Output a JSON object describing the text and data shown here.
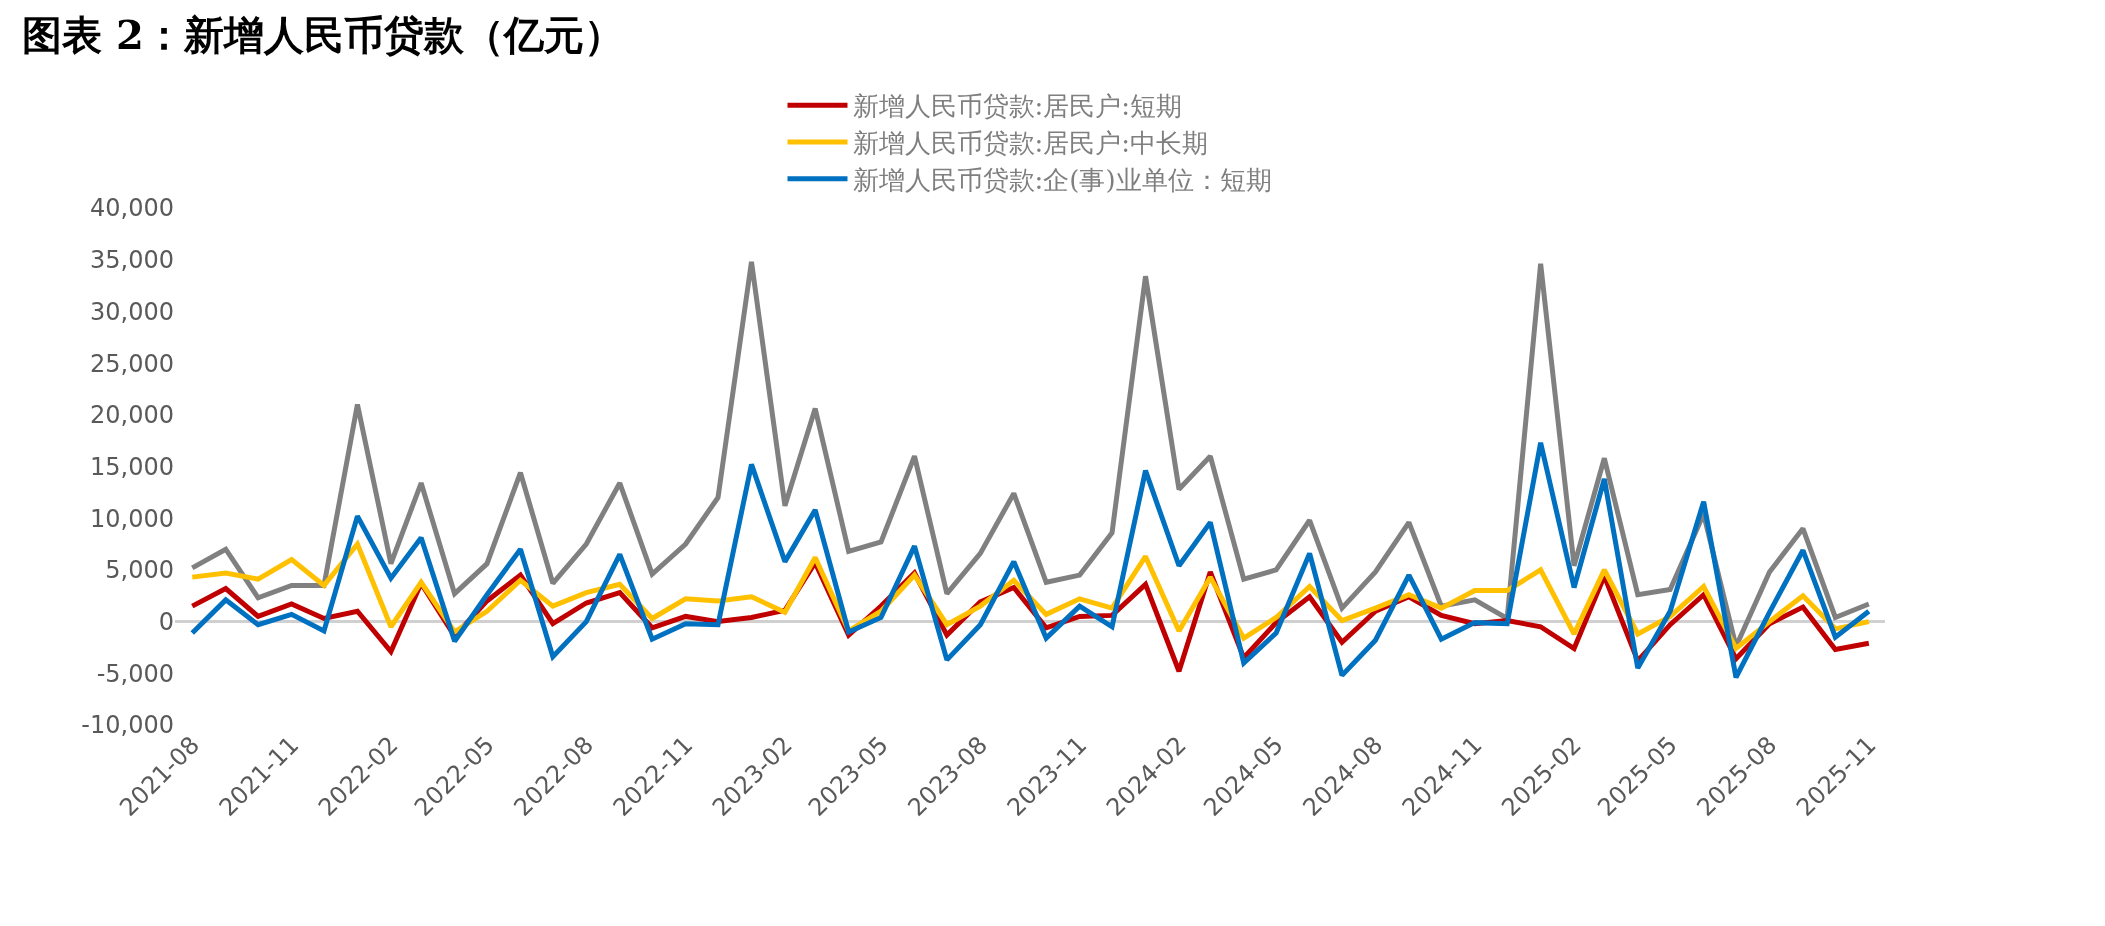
{
  "chart_data": {
    "type": "line",
    "title": "图表 2：新增人民币贷款（亿元）",
    "x": [
      "2021-08",
      "2021-09",
      "2021-10",
      "2021-11",
      "2021-12",
      "2022-01",
      "2022-02",
      "2022-03",
      "2022-04",
      "2022-05",
      "2022-06",
      "2022-07",
      "2022-08",
      "2022-09",
      "2022-10",
      "2022-11",
      "2022-12",
      "2023-01",
      "2023-02",
      "2023-03",
      "2023-04",
      "2023-05",
      "2023-06",
      "2023-07",
      "2023-08",
      "2023-09",
      "2023-10",
      "2023-11",
      "2023-12",
      "2024-01",
      "2024-02",
      "2024-03",
      "2024-04",
      "2024-05",
      "2024-06",
      "2024-07",
      "2024-08",
      "2024-09",
      "2024-10",
      "2024-11",
      "2024-12",
      "2025-01",
      "2025-02",
      "2025-03",
      "2025-04",
      "2025-05",
      "2025-06",
      "2025-07",
      "2025-08",
      "2025-09",
      "2025-10",
      "2025-11"
    ],
    "series": [
      {
        "name": "新增人民币贷款:居民户:短期",
        "color": "#c00000",
        "values": [
          1500,
          3200,
          500,
          1700,
          300,
          1000,
          -2900,
          3700,
          -1400,
          2000,
          4500,
          -200,
          1800,
          2800,
          -600,
          500,
          0,
          400,
          1100,
          5700,
          -1300,
          1500,
          4700,
          -1300,
          1900,
          3300,
          -600,
          500,
          600,
          3600,
          -4800,
          4800,
          -3500,
          -100,
          2400,
          -2000,
          1000,
          2400,
          600,
          -200,
          100,
          -500,
          -2600,
          4400,
          -3800,
          -300,
          2600,
          -3600,
          -200,
          1400,
          -2700,
          -2100
        ]
      },
      {
        "name": "新增人民币贷款:居民户:中长期",
        "color": "#ffc000",
        "values": [
          4300,
          4700,
          4100,
          6000,
          3500,
          7500,
          -500,
          3800,
          -1000,
          1000,
          4000,
          1500,
          2800,
          3600,
          300,
          2200,
          2000,
          2400,
          900,
          6200,
          -900,
          1000,
          4500,
          -300,
          1500,
          4000,
          700,
          2200,
          1300,
          6300,
          -900,
          4300,
          -1600,
          400,
          3400,
          100,
          1300,
          2600,
          1300,
          3000,
          3000,
          5000,
          -1200,
          5000,
          -1200,
          500,
          3400,
          -2600,
          0,
          2500,
          -700,
          0
        ]
      },
      {
        "name": "新增人民币贷款:企(事)业单位：短期",
        "color": "#0070c0",
        "values": [
          -1100,
          2100,
          -300,
          700,
          -900,
          10200,
          4200,
          8100,
          -1900,
          2600,
          7000,
          -3400,
          0,
          6500,
          -1700,
          -200,
          -300,
          15200,
          5800,
          10800,
          -1000,
          400,
          7300,
          -3700,
          -300,
          5800,
          -1600,
          1500,
          -500,
          14600,
          5400,
          9600,
          -4000,
          -1100,
          6600,
          -5200,
          -1800,
          4500,
          -1700,
          -100,
          -200,
          17300,
          3300,
          13800,
          -4500,
          1000,
          11600,
          -5400,
          900,
          6900,
          -1500,
          1000
        ]
      },
      {
        "color": "#808080",
        "values": [
          5200,
          7000,
          2300,
          3500,
          3500,
          21000,
          5600,
          13400,
          2700,
          5600,
          14400,
          3700,
          7500,
          13400,
          4600,
          7500,
          12000,
          34800,
          11200,
          20600,
          6800,
          7700,
          16000,
          2700,
          6600,
          12400,
          3800,
          4500,
          8600,
          33400,
          12800,
          16000,
          4100,
          5000,
          9800,
          1300,
          4800,
          9600,
          1500,
          2100,
          300,
          34600,
          5400,
          15800,
          2600,
          3100,
          10400,
          -2400,
          4800,
          9000,
          400,
          1700
        ]
      }
    ],
    "xlim": [
      "2021-07-16",
      "2025-11-16"
    ],
    "xticks": [
      "2021-08",
      "2021-11",
      "2022-02",
      "2022-05",
      "2022-08",
      "2022-11",
      "2023-02",
      "2023-05",
      "2023-08",
      "2023-11",
      "2024-02",
      "2024-05",
      "2024-08",
      "2024-11",
      "2025-02",
      "2025-05",
      "2025-08",
      "2025-11"
    ],
    "ylim": [
      -10000,
      40000
    ],
    "yticks": [
      {
        "value": -10000,
        "label": "-10,000"
      },
      {
        "value": -5000,
        "label": "-5,000"
      },
      0,
      {
        "value": 5000,
        "label": "5,000"
      },
      {
        "value": 10000,
        "label": "10,000"
      },
      {
        "value": 15000,
        "label": "15,000"
      },
      {
        "value": 20000,
        "label": "20,000"
      },
      {
        "value": 25000,
        "label": "25,000"
      },
      {
        "value": 30000,
        "label": "30,000"
      },
      {
        "value": 35000,
        "label": "35,000"
      },
      {
        "value": 40000,
        "label": "40,000"
      }
    ],
    "legend": "top",
    "marker": "none",
    "line_style": "solid"
  }
}
